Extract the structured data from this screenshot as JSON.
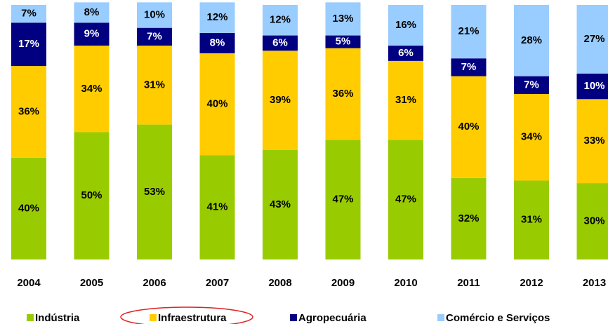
{
  "chart_data": {
    "type": "bar",
    "stacked": true,
    "categories": [
      "2004",
      "2005",
      "2006",
      "2007",
      "2008",
      "2009",
      "2010",
      "2011",
      "2012",
      "2013"
    ],
    "series": [
      {
        "name": "Indústria",
        "color": "#99cc00",
        "values": [
          40,
          50,
          53,
          41,
          43,
          47,
          47,
          32,
          31,
          30
        ],
        "value_labels": [
          "40%",
          "50%",
          "53%",
          "41%",
          "43%",
          "47%",
          "47%",
          "32%",
          "31%",
          "30%"
        ]
      },
      {
        "name": "Infraestrutura",
        "color": "#ffcc00",
        "values": [
          36,
          34,
          31,
          40,
          39,
          36,
          31,
          40,
          34,
          33
        ],
        "value_labels": [
          "36%",
          "34%",
          "31%",
          "40%",
          "39%",
          "36%",
          "31%",
          "40%",
          "34%",
          "33%"
        ]
      },
      {
        "name": "Agropecuária",
        "color": "#000080",
        "values": [
          17,
          9,
          7,
          8,
          6,
          5,
          6,
          7,
          7,
          10
        ],
        "value_labels": [
          "17%",
          "9%",
          "7%",
          "8%",
          "6%",
          "5%",
          "6%",
          "7%",
          "7%",
          "10%"
        ]
      },
      {
        "name": "Comércio e Serviços",
        "color": "#99ccff",
        "values": [
          7,
          8,
          10,
          12,
          12,
          13,
          16,
          21,
          28,
          27
        ],
        "value_labels": [
          "7%",
          "8%",
          "10%",
          "12%",
          "12%",
          "13%",
          "16%",
          "21%",
          "28%",
          "27%"
        ]
      }
    ]
  }
}
